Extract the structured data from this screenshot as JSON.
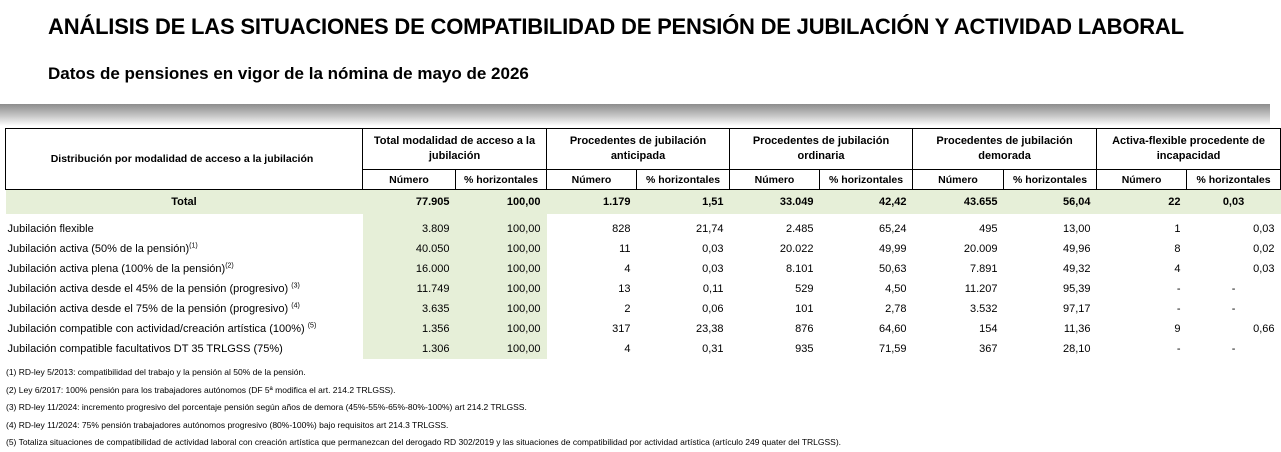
{
  "title": "ANÁLISIS DE LAS SITUACIONES DE COMPATIBILIDAD DE PENSIÓN DE JUBILACIÓN Y ACTIVIDAD LABORAL",
  "subtitle": "Datos de pensiones en vigor de la nómina de mayo de 2026",
  "table": {
    "row_header": "Distribución por modalidad de acceso a la jubilación",
    "groups": [
      "Total modalidad de acceso a la jubilación",
      "Procedentes de jubilación anticipada",
      "Procedentes de jubilación ordinaria",
      "Procedentes de jubilación demorada",
      "Activa-flexible procedente de incapacidad"
    ],
    "sub_number": "Número",
    "sub_pct": "% horizontales",
    "total": {
      "label": "Total",
      "values": [
        "77.905",
        "100,00",
        "1.179",
        "1,51",
        "33.049",
        "42,42",
        "43.655",
        "56,04",
        "22",
        "0,03"
      ]
    },
    "rows": [
      {
        "label": "Jubilación flexible",
        "note": "",
        "values": [
          "3.809",
          "100,00",
          "828",
          "21,74",
          "2.485",
          "65,24",
          "495",
          "13,00",
          "1",
          "0,03"
        ]
      },
      {
        "label": "Jubilación activa (50% de la pensión)",
        "note": "(1)",
        "values": [
          "40.050",
          "100,00",
          "11",
          "0,03",
          "20.022",
          "49,99",
          "20.009",
          "49,96",
          "8",
          "0,02"
        ]
      },
      {
        "label": "Jubilación activa plena (100% de la pensión)",
        "note": "(2)",
        "values": [
          "16.000",
          "100,00",
          "4",
          "0,03",
          "8.101",
          "50,63",
          "7.891",
          "49,32",
          "4",
          "0,03"
        ]
      },
      {
        "label": "Jubilación activa desde el 45% de la pensión (progresivo) ",
        "note": "(3)",
        "values": [
          "11.749",
          "100,00",
          "13",
          "0,11",
          "529",
          "4,50",
          "11.207",
          "95,39",
          "-",
          "-"
        ]
      },
      {
        "label": "Jubilación activa desde el 75% de la pensión (progresivo) ",
        "note": "(4)",
        "values": [
          "3.635",
          "100,00",
          "2",
          "0,06",
          "101",
          "2,78",
          "3.532",
          "97,17",
          "-",
          "-"
        ]
      },
      {
        "label": "Jubilación compatible con actividad/creación artística (100%) ",
        "note": "(5)",
        "values": [
          "1.356",
          "100,00",
          "317",
          "23,38",
          "876",
          "64,60",
          "154",
          "11,36",
          "9",
          "0,66"
        ]
      },
      {
        "label": "Jubilación compatible facultativos DT 35 TRLGSS (75%)",
        "note": "",
        "values": [
          "1.306",
          "100,00",
          "4",
          "0,31",
          "935",
          "71,59",
          "367",
          "28,10",
          "-",
          "-"
        ]
      }
    ]
  },
  "notes": [
    "(1) RD-ley 5/2013: compatibilidad del trabajo y la pensión al 50% de la pensión.",
    "(2) Ley 6/2017: 100% pensión para los trabajadores autónomos (DF 5ª modifica el art. 214.2 TRLGSS).",
    "(3) RD-ley 11/2024: incremento progresivo del porcentaje pensión según años de demora (45%-55%-65%-80%-100%) art 214.2 TRLGSS.",
    "(4) RD-ley 11/2024: 75% pensión trabajadores autónomos progresivo (80%-100%) bajo requisitos art 214.3 TRLGSS.",
    "(5) Totaliza situaciones de compatibilidad de actividad laboral con creación artística que permanezcan del derogado RD 302/2019 y las situaciones de compatibilidad por actividad artística (artículo 249 quater del TRLGSS)."
  ]
}
